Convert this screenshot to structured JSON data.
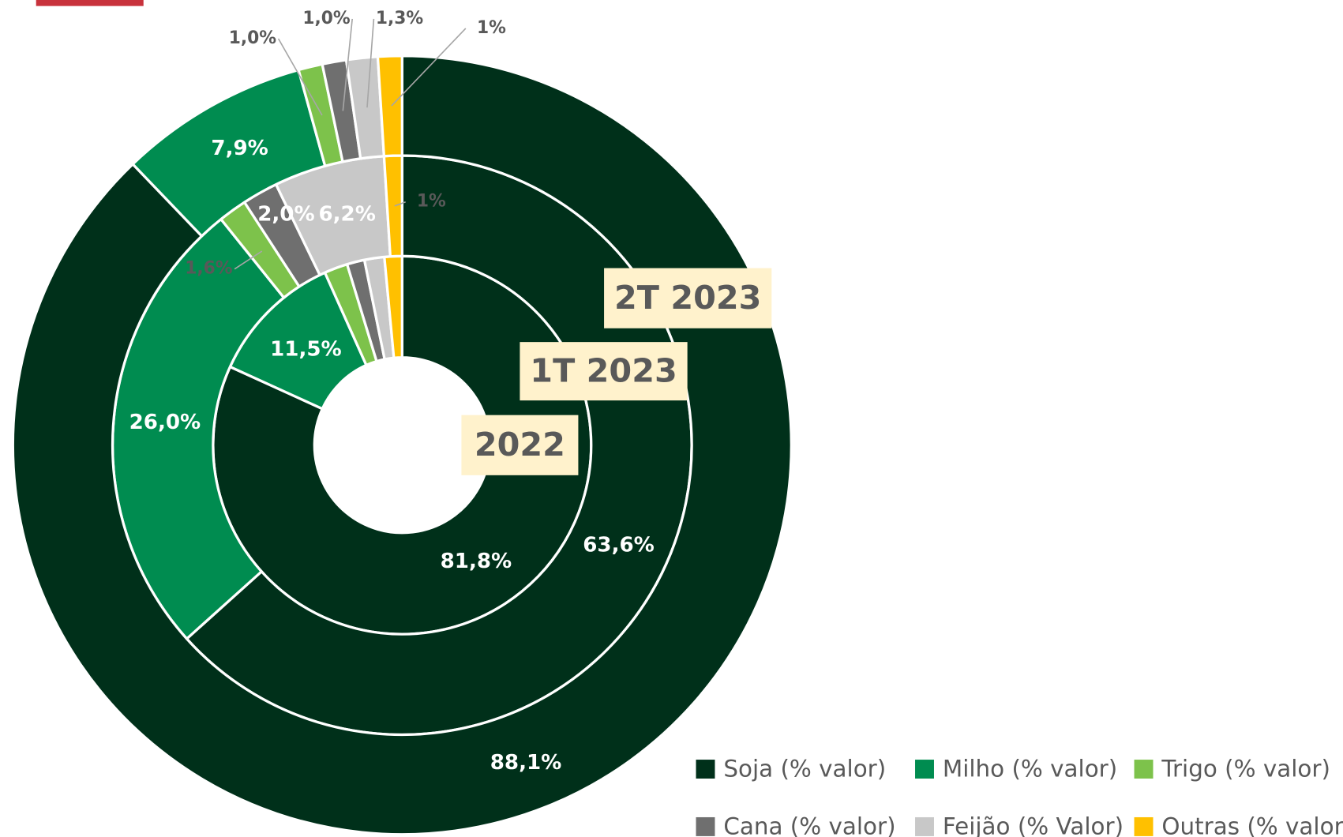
{
  "chart_data": {
    "type": "donut",
    "categories": [
      "Soja (% valor)",
      "Milho (% valor)",
      "Trigo (% valor)",
      "Cana (% valor)",
      "Feijão (% Valor)",
      "Outras (% valor)"
    ],
    "colors": [
      "#00301a",
      "#008c50",
      "#7dc24b",
      "#6f6f6f",
      "#c8c8c8",
      "#ffc000"
    ],
    "series": [
      {
        "name": "2022",
        "values": [
          81.8,
          11.5,
          2.0,
          1.5,
          1.7,
          1.5
        ],
        "value_labels": [
          "81,8%",
          "11,5%",
          null,
          null,
          null,
          null
        ]
      },
      {
        "name": "1T 2023",
        "values": [
          63.6,
          26.0,
          1.6,
          2.0,
          6.2,
          1
        ],
        "value_labels": [
          "63,6%",
          "26,0%",
          "1,6%",
          "2,0%",
          "6,2%",
          "1%"
        ]
      },
      {
        "name": "2T 2023",
        "values": [
          88.1,
          7.9,
          1.0,
          1.0,
          1.3,
          1
        ],
        "value_labels": [
          "88,1%",
          "7,9%",
          "1,0%",
          "1,0%",
          "1,3%",
          "1%"
        ]
      }
    ],
    "legend": "bottom-right"
  }
}
